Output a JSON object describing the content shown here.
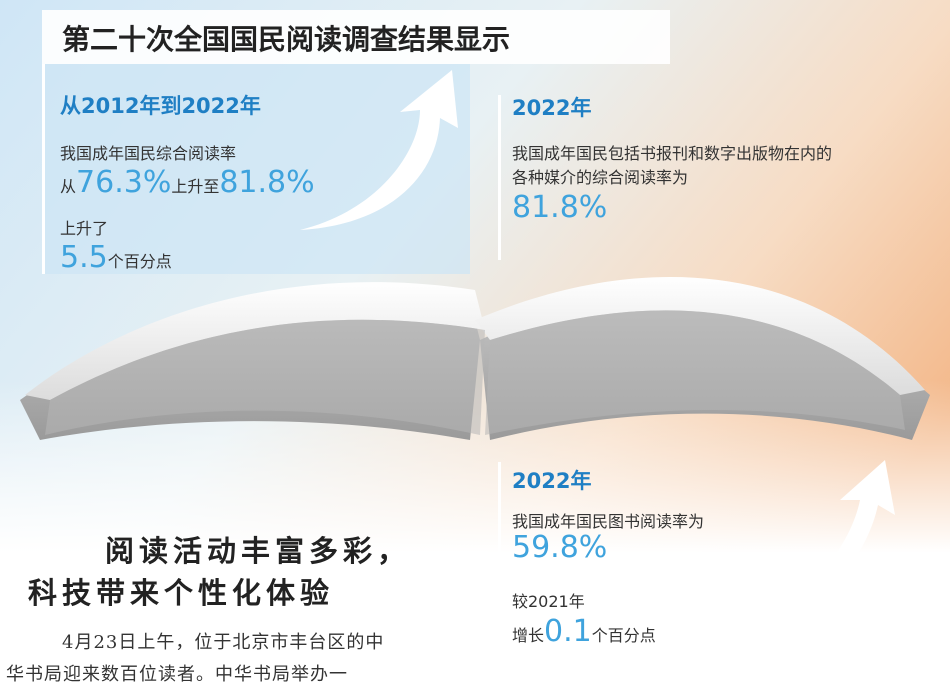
{
  "title": "第二十次全国国民阅读调查结果显示",
  "panels": [
    {
      "heading": "从2012年到2022年",
      "lines": [
        [
          "我国成年国民综合阅读率"
        ],
        [
          "从",
          "76.3%",
          "上升至",
          "81.8%"
        ],
        [
          "上升了"
        ],
        [
          "5.5",
          "个百分点"
        ]
      ]
    },
    {
      "heading": "2022年",
      "lines": [
        [
          "我国成年国民包括书报刊和数字出版物在内的"
        ],
        [
          "各种媒介的综合阅读率为"
        ],
        [
          "81.8%"
        ]
      ]
    },
    {
      "heading": "2022年",
      "lines": [
        [
          "我国成年国民图书阅读率为"
        ],
        [
          "59.8%"
        ],
        [
          "较2021年"
        ],
        [
          "增长",
          "0.1",
          "个百分点"
        ]
      ]
    }
  ],
  "article": {
    "headline": [
      "阅读活动丰富多彩，",
      "科技带来个性化体验"
    ],
    "body": [
      "4月23日上午，位于北京市丰台区的中",
      "华书局迎来数百位读者。中华书局举办一"
    ]
  }
}
